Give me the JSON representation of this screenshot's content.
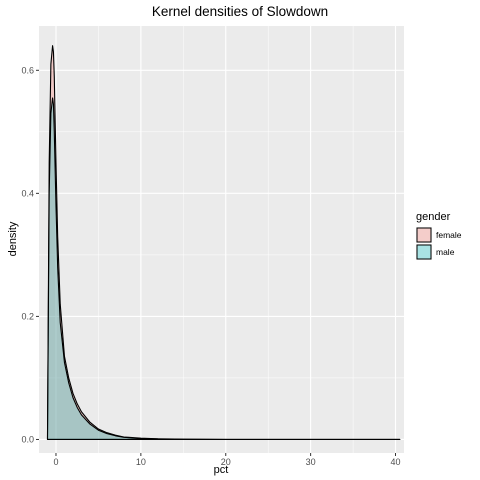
{
  "chart_data": {
    "type": "area",
    "title": "Kernel densities of Slowdown",
    "xlabel": "pct",
    "ylabel": "density",
    "xlim": [
      -2,
      41
    ],
    "ylim": [
      -0.022,
      0.672
    ],
    "x_ticks": [
      0,
      10,
      20,
      30,
      40
    ],
    "x_tick_labels": [
      "0",
      "10",
      "20",
      "30",
      "40"
    ],
    "y_ticks": [
      0.0,
      0.2,
      0.4,
      0.6
    ],
    "y_tick_labels": [
      "0.0",
      "0.2",
      "0.4",
      "0.6"
    ],
    "grid": true,
    "legend": {
      "title": "gender",
      "position": "right"
    },
    "series": [
      {
        "name": "female",
        "fill": "#F8766D",
        "fill_opacity": 0.3,
        "x": [
          -1.0,
          -0.8,
          -0.6,
          -0.4,
          -0.3,
          -0.2,
          0.0,
          0.2,
          0.5,
          1.0,
          1.5,
          2.0,
          2.5,
          3.0,
          4.0,
          5.0,
          6.0,
          7.0,
          8.0,
          10.0,
          12.0,
          15.0,
          20.0,
          25.0,
          30.0,
          35.0,
          40.5
        ],
        "y": [
          0.0,
          0.45,
          0.61,
          0.64,
          0.63,
          0.59,
          0.45,
          0.33,
          0.22,
          0.135,
          0.1,
          0.075,
          0.058,
          0.045,
          0.028,
          0.017,
          0.011,
          0.007,
          0.004,
          0.002,
          0.001,
          0.0005,
          0.0,
          0.0,
          0.0,
          0.0,
          0.0
        ]
      },
      {
        "name": "male",
        "fill": "#00BFC4",
        "fill_opacity": 0.3,
        "x": [
          -1.0,
          -0.8,
          -0.6,
          -0.4,
          -0.3,
          -0.2,
          0.0,
          0.2,
          0.5,
          1.0,
          1.5,
          2.0,
          2.5,
          3.0,
          4.0,
          5.0,
          6.0,
          7.0,
          8.0,
          10.0,
          12.0,
          15.0,
          20.0,
          25.0,
          30.0,
          35.0,
          40.5
        ],
        "y": [
          0.0,
          0.4,
          0.53,
          0.555,
          0.545,
          0.5,
          0.38,
          0.28,
          0.19,
          0.125,
          0.092,
          0.068,
          0.052,
          0.04,
          0.025,
          0.015,
          0.0095,
          0.006,
          0.0035,
          0.0015,
          0.0008,
          0.0003,
          0.0,
          0.0,
          0.0,
          0.0,
          0.0
        ]
      }
    ]
  }
}
